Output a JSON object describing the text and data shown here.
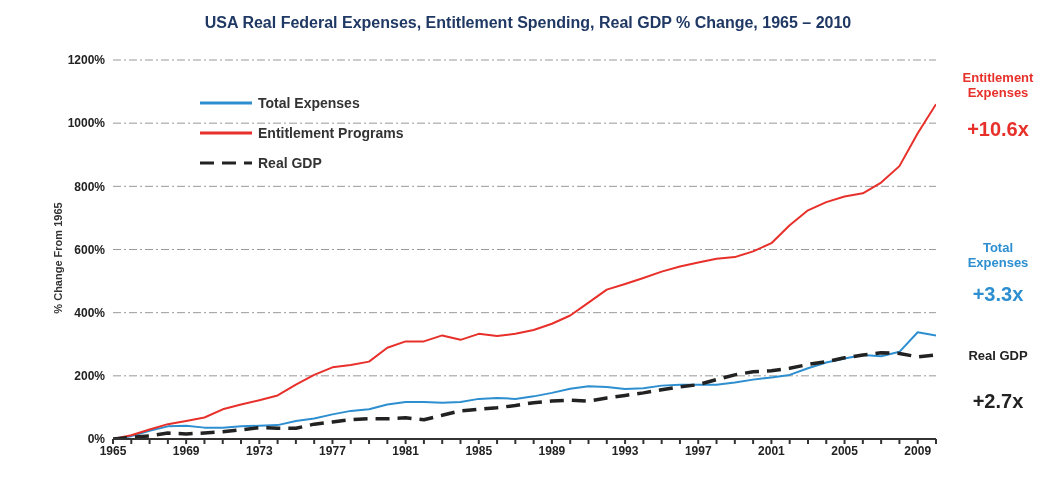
{
  "chart_data": {
    "type": "line",
    "title": "USA Real Federal Expenses, Entitlement Spending, Real GDP % Change, 1965 – 2010",
    "ylabel": "% Change From 1965",
    "x": [
      1965,
      1966,
      1967,
      1968,
      1969,
      1970,
      1971,
      1972,
      1973,
      1974,
      1975,
      1976,
      1977,
      1978,
      1979,
      1980,
      1981,
      1982,
      1983,
      1984,
      1985,
      1986,
      1987,
      1988,
      1989,
      1990,
      1991,
      1992,
      1993,
      1994,
      1995,
      1996,
      1997,
      1998,
      1999,
      2000,
      2001,
      2002,
      2003,
      2004,
      2005,
      2006,
      2007,
      2008,
      2009,
      2010
    ],
    "series": [
      {
        "name": "Total Expenses",
        "color": "#2e8fd0",
        "values": [
          0,
          9,
          26,
          40,
          42,
          36,
          36,
          40,
          42,
          44,
          57,
          65,
          78,
          89,
          94,
          109,
          117,
          117,
          115,
          117,
          127,
          130,
          127,
          135,
          146,
          159,
          167,
          165,
          158,
          161,
          169,
          172,
          172,
          172,
          179,
          188,
          195,
          203,
          224,
          242,
          255,
          266,
          262,
          276,
          338,
          328
        ]
      },
      {
        "name": "Entitlement Programs",
        "color": "#e8302a",
        "values": [
          0,
          12,
          30,
          47,
          57,
          68,
          94,
          109,
          123,
          138,
          172,
          203,
          227,
          234,
          245,
          289,
          309,
          309,
          328,
          314,
          333,
          326,
          333,
          345,
          365,
          391,
          432,
          473,
          491,
          510,
          530,
          546,
          559,
          571,
          576,
          594,
          620,
          677,
          724,
          750,
          768,
          778,
          812,
          864,
          968,
          1060
        ]
      },
      {
        "name": "Real GDP",
        "color": "#222222",
        "line_style": "dashed",
        "values": [
          0,
          5,
          10,
          19,
          16,
          19,
          23,
          29,
          36,
          34,
          34,
          47,
          54,
          61,
          64,
          64,
          67,
          61,
          75,
          89,
          94,
          99,
          106,
          115,
          120,
          123,
          120,
          130,
          138,
          146,
          156,
          165,
          172,
          188,
          203,
          213,
          216,
          224,
          236,
          245,
          257,
          266,
          273,
          271,
          260,
          266
        ]
      }
    ],
    "xlim": [
      1965,
      2010
    ],
    "xticks": [
      1965,
      {
        "value": 1966,
        "label": null
      },
      {
        "value": 1967,
        "label": null
      },
      {
        "value": 1968,
        "label": null
      },
      1969,
      {
        "value": 1970,
        "label": null
      },
      {
        "value": 1971,
        "label": null
      },
      {
        "value": 1972,
        "label": null
      },
      1973,
      {
        "value": 1974,
        "label": null
      },
      {
        "value": 1975,
        "label": null
      },
      {
        "value": 1976,
        "label": null
      },
      1977,
      {
        "value": 1978,
        "label": null
      },
      {
        "value": 1979,
        "label": null
      },
      {
        "value": 1980,
        "label": null
      },
      1981,
      {
        "value": 1982,
        "label": null
      },
      {
        "value": 1983,
        "label": null
      },
      {
        "value": 1984,
        "label": null
      },
      1985,
      {
        "value": 1986,
        "label": null
      },
      {
        "value": 1987,
        "label": null
      },
      {
        "value": 1988,
        "label": null
      },
      1989,
      {
        "value": 1990,
        "label": null
      },
      {
        "value": 1991,
        "label": null
      },
      {
        "value": 1992,
        "label": null
      },
      1993,
      {
        "value": 1994,
        "label": null
      },
      {
        "value": 1995,
        "label": null
      },
      {
        "value": 1996,
        "label": null
      },
      1997,
      {
        "value": 1998,
        "label": null
      },
      {
        "value": 1999,
        "label": null
      },
      {
        "value": 2000,
        "label": null
      },
      2001,
      {
        "value": 2002,
        "label": null
      },
      {
        "value": 2003,
        "label": null
      },
      {
        "value": 2004,
        "label": null
      },
      2005,
      {
        "value": 2006,
        "label": null
      },
      {
        "value": 2007,
        "label": null
      },
      {
        "value": 2008,
        "label": null
      },
      2009,
      {
        "value": 2010,
        "label": null
      }
    ],
    "ylim": [
      0,
      1200
    ],
    "yticks": [
      {
        "value": 0,
        "label": "0%"
      },
      {
        "value": 200,
        "label": "200%"
      },
      {
        "value": 400,
        "label": "400%"
      },
      {
        "value": 600,
        "label": "600%"
      },
      {
        "value": 800,
        "label": "800%"
      },
      {
        "value": 1000,
        "label": "1000%"
      },
      {
        "value": 1200,
        "label": "1200%"
      }
    ],
    "grid": "y",
    "legend": "top left",
    "marker": "none",
    "annotations": [
      "Entitlement Expenses",
      "+10.6x",
      "Total Expenses",
      "+3.3x",
      "Real GDP",
      "+2.7x"
    ]
  }
}
